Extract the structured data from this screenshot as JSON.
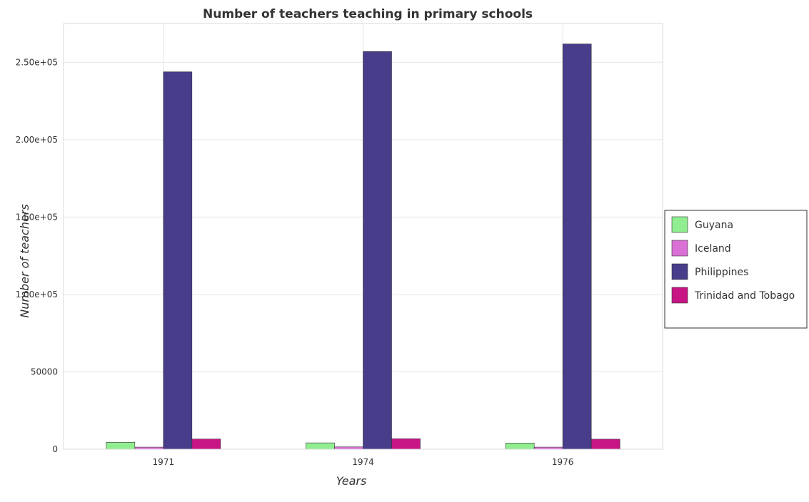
{
  "chart_data": {
    "type": "bar",
    "title": "Number of teachers teaching in primary schools",
    "xlabel": "Years",
    "ylabel": "Number of teachers",
    "categories": [
      "1971",
      "1974",
      "1976"
    ],
    "ylim": [
      0,
      275000
    ],
    "yticks": [
      0,
      50000,
      100000,
      150000,
      200000,
      250000
    ],
    "ytick_labels": [
      "0",
      "50000",
      "1.00e+05",
      "1.50e+05",
      "2.00e+05",
      "2.50e+05"
    ],
    "grid": true,
    "legend_position": "right",
    "series": [
      {
        "name": "Guyana",
        "color": "#90ee90",
        "values": [
          4450,
          4100,
          4000
        ]
      },
      {
        "name": "Iceland",
        "color": "#da70d6",
        "values": [
          1350,
          1500,
          1350
        ]
      },
      {
        "name": "Philippines",
        "color": "#483d8b",
        "values": [
          243800,
          256900,
          261800
        ]
      },
      {
        "name": "Trinidad and Tobago",
        "color": "#c71585",
        "values": [
          6600,
          6800,
          6500
        ]
      }
    ]
  }
}
